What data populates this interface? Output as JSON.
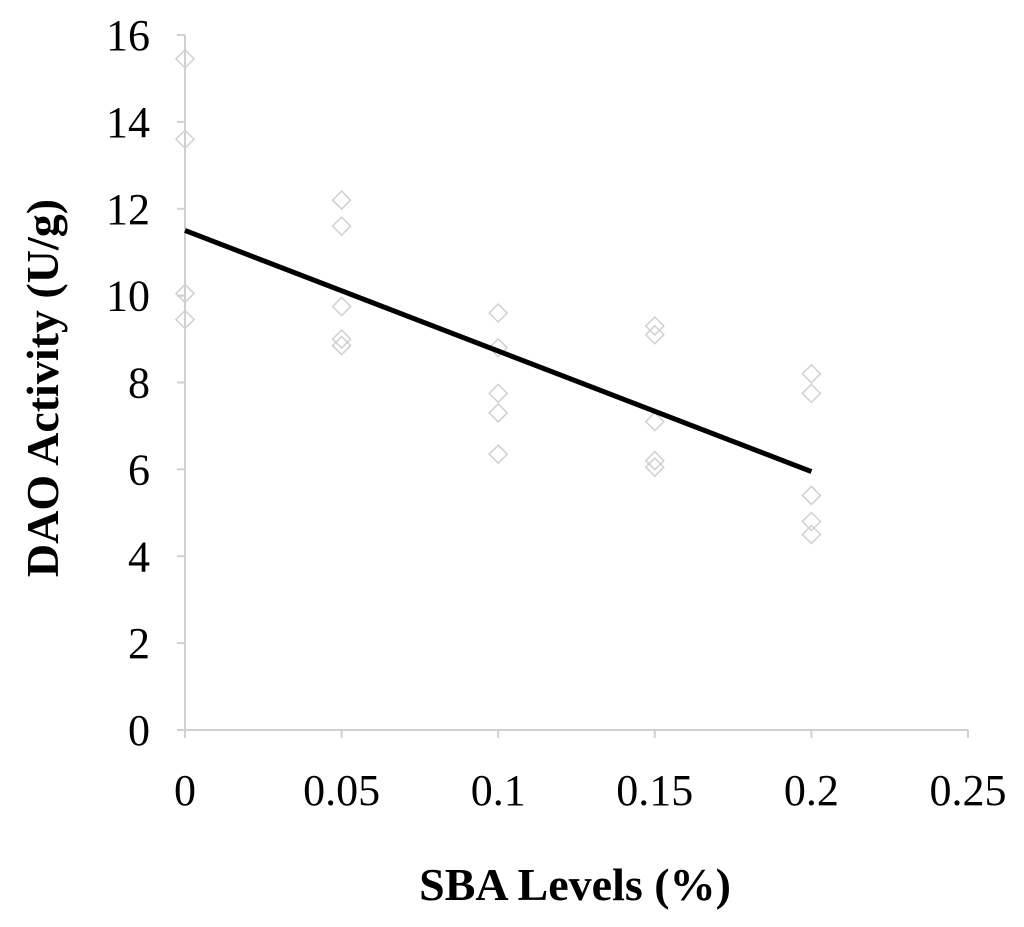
{
  "chart_data": {
    "type": "scatter",
    "title": "",
    "xlabel": "SBA Levels (%)",
    "ylabel": "DAO Activity (U/g)",
    "xlim": [
      0,
      0.25
    ],
    "ylim": [
      0,
      16
    ],
    "x_ticks": [
      "0",
      "0.05",
      "0.1",
      "0.15",
      "0.2",
      "0.25"
    ],
    "y_ticks": [
      "0",
      "2",
      "4",
      "6",
      "8",
      "10",
      "12",
      "14",
      "16"
    ],
    "grid": false,
    "legend": "none",
    "series": [
      {
        "marker": "open-diamond",
        "color": "#d0d0d0",
        "points": [
          {
            "x": 0,
            "y": 15.45
          },
          {
            "x": 0,
            "y": 13.6
          },
          {
            "x": 0,
            "y": 10.05
          },
          {
            "x": 0,
            "y": 9.45
          },
          {
            "x": 0.05,
            "y": 12.2
          },
          {
            "x": 0.05,
            "y": 11.6
          },
          {
            "x": 0.05,
            "y": 9.75
          },
          {
            "x": 0.05,
            "y": 9.0
          },
          {
            "x": 0.05,
            "y": 8.85
          },
          {
            "x": 0.1,
            "y": 9.6
          },
          {
            "x": 0.1,
            "y": 8.8
          },
          {
            "x": 0.1,
            "y": 7.75
          },
          {
            "x": 0.1,
            "y": 7.3
          },
          {
            "x": 0.1,
            "y": 6.35
          },
          {
            "x": 0.15,
            "y": 9.3
          },
          {
            "x": 0.15,
            "y": 9.1
          },
          {
            "x": 0.15,
            "y": 7.1
          },
          {
            "x": 0.15,
            "y": 6.2
          },
          {
            "x": 0.15,
            "y": 6.05
          },
          {
            "x": 0.2,
            "y": 8.2
          },
          {
            "x": 0.2,
            "y": 7.75
          },
          {
            "x": 0.2,
            "y": 5.4
          },
          {
            "x": 0.2,
            "y": 4.8
          },
          {
            "x": 0.2,
            "y": 4.5
          }
        ]
      }
    ],
    "trendline": {
      "type": "linear",
      "color": "#000000",
      "points": [
        {
          "x": 0,
          "y": 11.5
        },
        {
          "x": 0.2,
          "y": 5.95
        }
      ]
    },
    "colors": {
      "axis": "#d0d0d0",
      "marker": "#d0d0d0",
      "trendline": "#000000"
    }
  }
}
